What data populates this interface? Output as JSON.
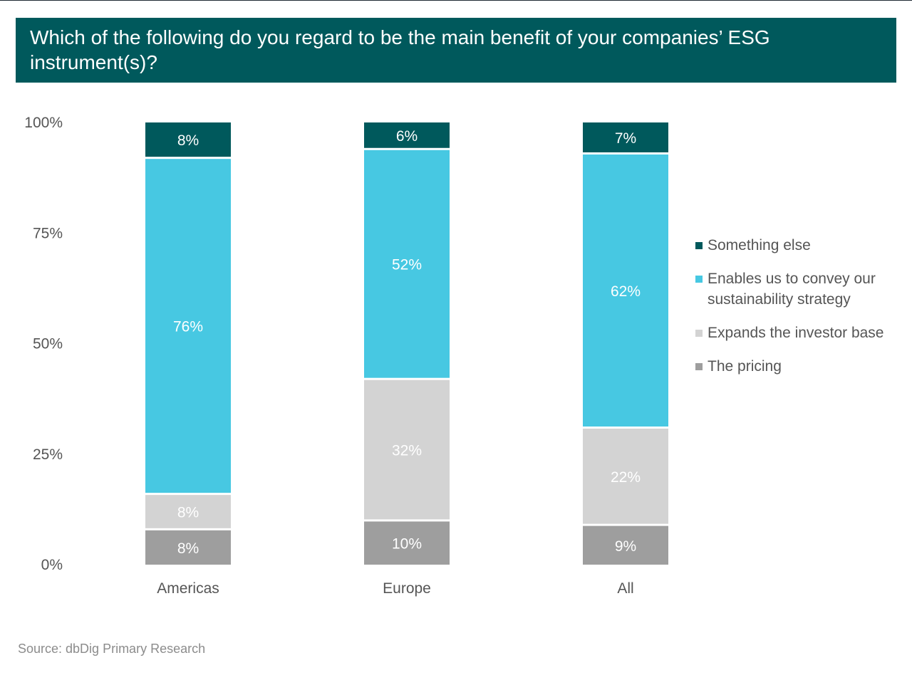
{
  "colors": {
    "header_bg": "#00595c",
    "something_else": "#00595c",
    "enables": "#47c8e2",
    "expands": "#d3d3d3",
    "pricing": "#9e9e9e"
  },
  "chart_data": {
    "type": "bar",
    "stacked": true,
    "title": "Which of the following do you regard to be the main benefit of your companies’ ESG instrument(s)?",
    "categories": [
      "Americas",
      "Europe",
      "All"
    ],
    "series": [
      {
        "name": "The pricing",
        "values": [
          8,
          10,
          9
        ],
        "labels": [
          "8%",
          "10%",
          "9%"
        ]
      },
      {
        "name": "Expands the investor base",
        "values": [
          8,
          32,
          22
        ],
        "labels": [
          "8%",
          "32%",
          "22%"
        ]
      },
      {
        "name": "Enables us to convey our sustainability strategy",
        "values": [
          76,
          52,
          62
        ],
        "labels": [
          "76%",
          "52%",
          "62%"
        ]
      },
      {
        "name": "Something else",
        "values": [
          8,
          6,
          7
        ],
        "labels": [
          "8%",
          "6%",
          "7%"
        ]
      }
    ],
    "ylim": [
      0,
      100
    ],
    "yticks": [
      "0%",
      "25%",
      "50%",
      "75%",
      "100%"
    ],
    "grid": false,
    "legend_position": "right",
    "legend_order": [
      "Something else",
      "Enables us to convey our sustainability strategy",
      "Expands the investor base",
      "The pricing"
    ]
  },
  "source": "Source: dbDig Primary Research"
}
